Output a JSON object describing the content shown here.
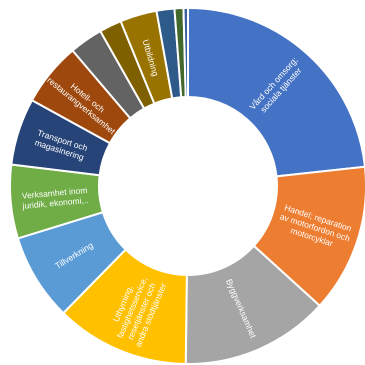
{
  "chart_data": {
    "type": "donut",
    "title": "",
    "legend": "none",
    "start_angle_deg": 0,
    "direction": "clockwise",
    "hole_fraction": 0.5,
    "slices": [
      {
        "label": [
          "Vård och omsorg;",
          "sociala tjänster"
        ],
        "value": 23.0,
        "color": "#4472C4"
      },
      {
        "label": [
          "Handel; reparation",
          "av motorfordon och",
          "motorcyklar"
        ],
        "value": 13.3,
        "color": "#ED7D31"
      },
      {
        "label": [
          "Byggverksamhet"
        ],
        "value": 13.3,
        "color": "#A5A5A5"
      },
      {
        "label": [
          "Uthyrning,",
          "fastighetsservice,",
          "resetjänster och",
          "andra stödtjänster"
        ],
        "value": 12.0,
        "color": "#FFC000"
      },
      {
        "label": [
          "Tillverkning"
        ],
        "value": 7.8,
        "color": "#5B9BD5"
      },
      {
        "label": [
          "Verksamhet inom",
          "juridik, ekonomi,.."
        ],
        "value": 6.6,
        "color": "#70AD47"
      },
      {
        "label": [
          "Transport och",
          "magasinering"
        ],
        "value": 6.0,
        "color": "#264478"
      },
      {
        "label": [
          "Hotell- och",
          "restaurangverksamhet"
        ],
        "value": 5.7,
        "color": "#9E480E"
      },
      {
        "label": [
          ""
        ],
        "value": 3.0,
        "color": "#636363"
      },
      {
        "label": [
          ""
        ],
        "value": 2.0,
        "color": "#7F6000"
      },
      {
        "label": [
          "Utbildning"
        ],
        "value": 3.3,
        "color": "#997300"
      },
      {
        "label": [
          ""
        ],
        "value": 1.6,
        "color": "#2E5A8A"
      },
      {
        "label": [
          ""
        ],
        "value": 0.8,
        "color": "#43682B"
      },
      {
        "label": [
          ""
        ],
        "value": 0.4,
        "color": "#3A5F9E"
      }
    ]
  }
}
